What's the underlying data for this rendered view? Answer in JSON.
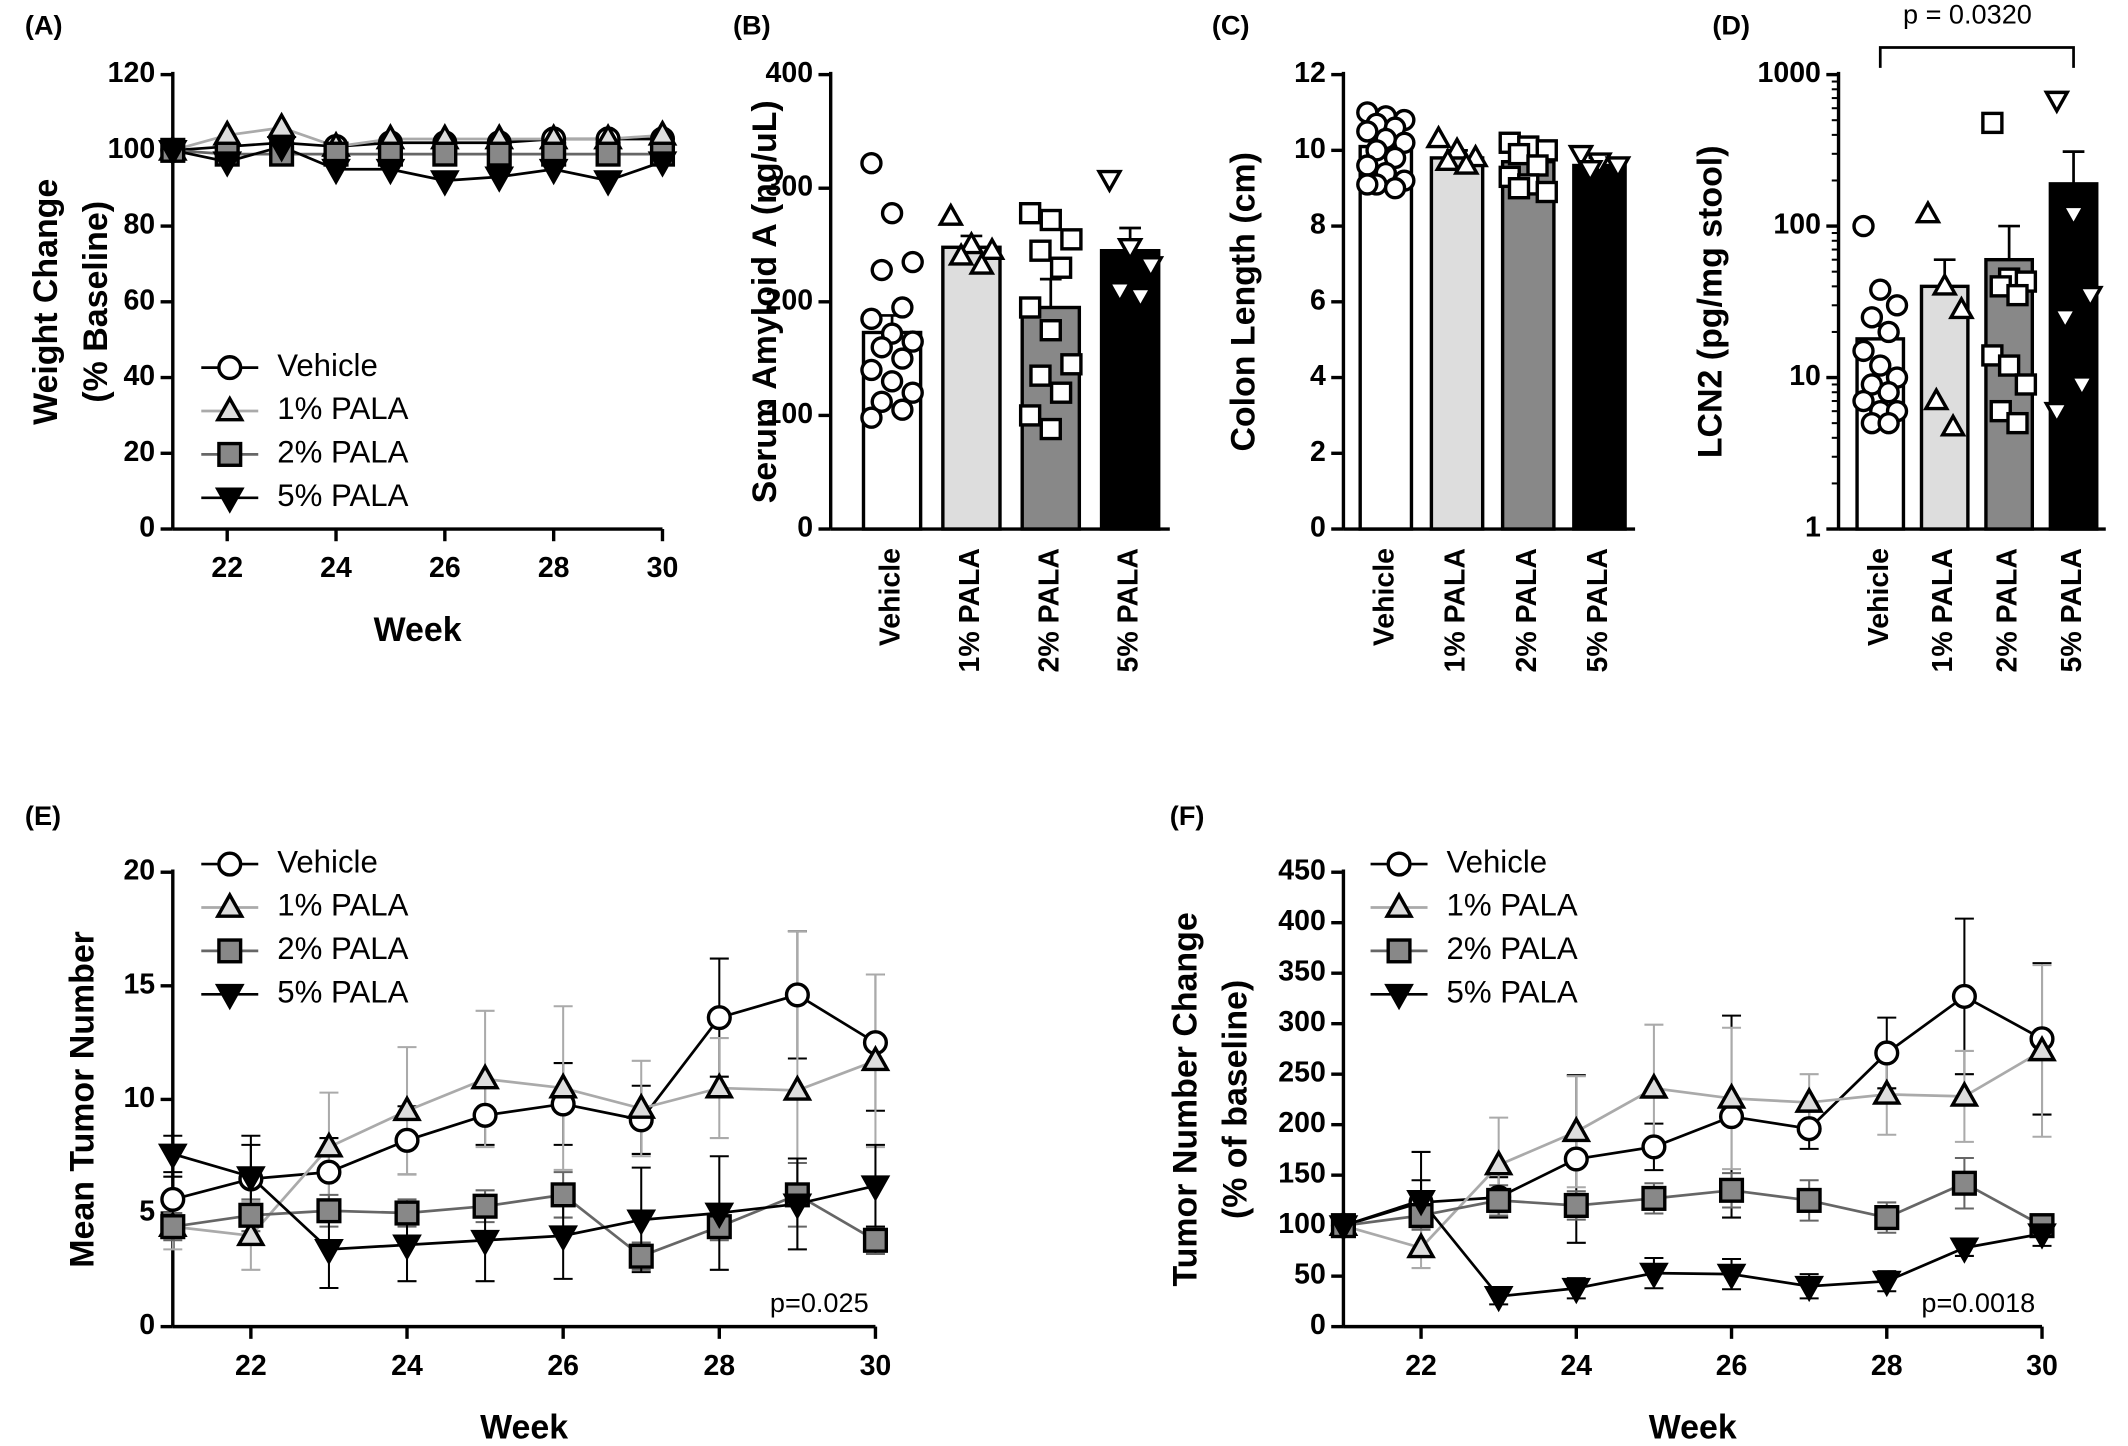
{
  "chart_data": [
    {
      "type": "line",
      "panel": "(A)",
      "xlabel": "Week",
      "ylabel": [
        "Weight Change",
        "(% Baseline)"
      ],
      "x": [
        21,
        22,
        23,
        24,
        25,
        26,
        27,
        28,
        29,
        30
      ],
      "xlim": [
        21,
        30
      ],
      "xticks": [
        22,
        24,
        26,
        28,
        30
      ],
      "ylim": [
        0,
        120
      ],
      "yticks": [
        0,
        20,
        40,
        60,
        80,
        100,
        120
      ],
      "series": [
        {
          "name": "Vehicle",
          "marker": "circle",
          "color": "#ffffff",
          "line_color": "#000000",
          "values": [
            100,
            101,
            102,
            101,
            102,
            102,
            102,
            103,
            103,
            103
          ]
        },
        {
          "name": "1% PALA",
          "marker": "triangle-up",
          "color": "#dddddd",
          "line_color": "#aaaaaa",
          "values": [
            100,
            104,
            106,
            101,
            103,
            103,
            103,
            103,
            103,
            104
          ]
        },
        {
          "name": "2% PALA",
          "marker": "square",
          "color": "#888888",
          "line_color": "#666666",
          "values": [
            100,
            99,
            99,
            99,
            99,
            99,
            99,
            99,
            99,
            99
          ]
        },
        {
          "name": "5% PALA",
          "marker": "triangle-down",
          "color": "#000000",
          "line_color": "#000000",
          "values": [
            100,
            97,
            101,
            95,
            95,
            92,
            93,
            95,
            92,
            97
          ]
        }
      ]
    },
    {
      "type": "bar",
      "panel": "(B)",
      "ylabel": "Serum Amyloid A (ng/uL)",
      "categories": [
        "Vehicle",
        "1% PALA",
        "2% PALA",
        "5% PALA"
      ],
      "colors": [
        "#ffffff",
        "#dddddd",
        "#888888",
        "#000000"
      ],
      "markers": [
        "circle",
        "triangle-up",
        "square",
        "triangle-down"
      ],
      "values": [
        173,
        248,
        195,
        245
      ],
      "errors": [
        15,
        10,
        25,
        20
      ],
      "points": [
        [
          322,
          278,
          235,
          228,
          195,
          185,
          172,
          165,
          160,
          150,
          140,
          130,
          120,
          112,
          105,
          98
        ],
        [
          275,
          250,
          245,
          240,
          232
        ],
        [
          278,
          272,
          255,
          245,
          230,
          195,
          175,
          145,
          135,
          120,
          100,
          88
        ],
        [
          308,
          248,
          232,
          210,
          205
        ]
      ],
      "ylim": [
        0,
        400
      ],
      "yticks": [
        0,
        100,
        200,
        300,
        400
      ]
    },
    {
      "type": "bar",
      "panel": "(C)",
      "ylabel": "Colon Length (cm)",
      "categories": [
        "Vehicle",
        "1% PALA",
        "2% PALA",
        "5% PALA"
      ],
      "colors": [
        "#ffffff",
        "#dddddd",
        "#888888",
        "#000000"
      ],
      "markers": [
        "circle",
        "triangle-up",
        "square",
        "triangle-down"
      ],
      "values": [
        10.1,
        9.8,
        9.7,
        9.6
      ],
      "errors": [
        0.15,
        0.2,
        0.2,
        0.2
      ],
      "points": [
        [
          11.0,
          10.9,
          10.8,
          10.7,
          10.6,
          10.5,
          10.3,
          10.2,
          10.0,
          9.8,
          9.6,
          9.4,
          9.2,
          9.1,
          9.0,
          9.1
        ],
        [
          10.3,
          10.0,
          9.8,
          9.7,
          9.6
        ],
        [
          10.2,
          10.1,
          10.0,
          9.9,
          9.6,
          9.3,
          9.1,
          8.9,
          9.0
        ],
        [
          9.9,
          9.7,
          9.6,
          9.5
        ]
      ],
      "ylim": [
        0,
        12
      ],
      "yticks": [
        0,
        2,
        4,
        6,
        8,
        10,
        12
      ]
    },
    {
      "type": "bar",
      "panel": "(D)",
      "ylabel": "LCN2 (pg/mg stool)",
      "log_scale": true,
      "annotation": "p = 0.0320",
      "categories": [
        "Vehicle",
        "1% PALA",
        "2% PALA",
        "5% PALA"
      ],
      "colors": [
        "#ffffff",
        "#dddddd",
        "#888888",
        "#000000"
      ],
      "markers": [
        "circle",
        "triangle-up",
        "square",
        "triangle-down"
      ],
      "values": [
        18,
        40,
        60,
        190
      ],
      "errors": [
        4,
        20,
        40,
        120
      ],
      "points": [
        [
          100,
          38,
          30,
          25,
          20,
          15,
          12,
          10,
          9,
          8,
          7,
          6,
          6,
          5,
          5
        ],
        [
          120,
          40,
          28,
          7,
          4.7
        ],
        [
          480,
          45,
          43,
          40,
          35,
          14,
          12,
          9,
          6,
          5
        ],
        [
          680,
          120,
          35,
          25,
          9,
          6
        ]
      ],
      "ylim": [
        1,
        1000
      ],
      "yticks": [
        1,
        10,
        100,
        1000
      ]
    },
    {
      "type": "line",
      "panel": "(E)",
      "xlabel": "Week",
      "ylabel": [
        "Mean Tumor Number"
      ],
      "annotation": "p=0.025",
      "x": [
        21,
        22,
        23,
        24,
        25,
        26,
        27,
        28,
        29,
        30
      ],
      "xlim": [
        21,
        30
      ],
      "xticks": [
        22,
        24,
        26,
        28,
        30
      ],
      "ylim": [
        0,
        20
      ],
      "yticks": [
        0,
        5,
        10,
        15,
        20
      ],
      "series": [
        {
          "name": "Vehicle",
          "marker": "circle",
          "color": "#ffffff",
          "line_color": "#000000",
          "values": [
            5.6,
            6.5,
            6.8,
            8.2,
            9.3,
            9.8,
            9.1,
            13.6,
            14.6,
            12.5
          ],
          "errors": [
            1,
            1.5,
            1.5,
            1.5,
            1.3,
            1.8,
            1.5,
            2.6,
            2.8,
            3
          ]
        },
        {
          "name": "1% PALA",
          "marker": "triangle-up",
          "color": "#dddddd",
          "line_color": "#aaaaaa",
          "values": [
            4.4,
            4.0,
            7.9,
            9.5,
            10.9,
            10.5,
            9.6,
            10.5,
            10.4,
            11.7
          ],
          "errors": [
            1,
            1.5,
            2.4,
            2.8,
            3,
            3.6,
            2.1,
            2.2,
            7,
            3.8
          ]
        },
        {
          "name": "2% PALA",
          "marker": "square",
          "color": "#888888",
          "line_color": "#666666",
          "values": [
            4.4,
            4.9,
            5.1,
            5.0,
            5.3,
            5.8,
            3.1,
            4.4,
            5.8,
            3.8
          ],
          "errors": [
            0.6,
            0.7,
            0.7,
            0.6,
            0.7,
            1,
            0.6,
            0.6,
            1.4,
            0.6
          ]
        },
        {
          "name": "5% PALA",
          "marker": "triangle-down",
          "color": "#000000",
          "line_color": "#000000",
          "values": [
            7.6,
            6.6,
            3.4,
            3.6,
            3.8,
            4.0,
            4.7,
            5.0,
            5.4,
            6.2
          ],
          "errors": [
            0.8,
            1.8,
            1.7,
            1.6,
            1.8,
            1.9,
            2.3,
            2.5,
            2.0,
            1.8
          ]
        }
      ]
    },
    {
      "type": "line",
      "panel": "(F)",
      "xlabel": "Week",
      "ylabel": [
        "Tumor Number Change",
        "(% of baseline)"
      ],
      "annotation": "p=0.0018",
      "x": [
        21,
        22,
        23,
        24,
        25,
        26,
        27,
        28,
        29,
        30
      ],
      "xlim": [
        21,
        30
      ],
      "xticks": [
        22,
        24,
        26,
        28,
        30
      ],
      "ylim": [
        0,
        450
      ],
      "yticks": [
        0,
        50,
        100,
        150,
        200,
        250,
        300,
        350,
        400,
        450
      ],
      "series": [
        {
          "name": "Vehicle",
          "marker": "circle",
          "color": "#ffffff",
          "line_color": "#000000",
          "values": [
            100,
            123,
            128,
            166,
            178,
            208,
            196,
            271,
            327,
            285
          ],
          "errors": [
            0,
            50,
            20,
            83,
            23,
            100,
            20,
            35,
            77,
            75
          ]
        },
        {
          "name": "1% PALA",
          "marker": "triangle-up",
          "color": "#dddddd",
          "line_color": "#aaaaaa",
          "values": [
            100,
            78,
            160,
            193,
            236,
            226,
            222,
            230,
            228,
            273
          ],
          "errors": [
            0,
            20,
            47,
            55,
            63,
            70,
            28,
            40,
            45,
            85
          ]
        },
        {
          "name": "2% PALA",
          "marker": "square",
          "color": "#888888",
          "line_color": "#666666",
          "values": [
            100,
            110,
            125,
            120,
            127,
            135,
            125,
            108,
            142,
            100
          ],
          "errors": [
            0,
            14,
            15,
            14,
            15,
            17,
            20,
            15,
            25,
            10
          ]
        },
        {
          "name": "5% PALA",
          "marker": "triangle-down",
          "color": "#000000",
          "line_color": "#000000",
          "values": [
            100,
            125,
            30,
            38,
            53,
            52,
            40,
            45,
            78,
            92
          ],
          "errors": [
            0,
            20,
            8,
            10,
            15,
            15,
            12,
            10,
            8,
            12
          ]
        }
      ]
    }
  ]
}
